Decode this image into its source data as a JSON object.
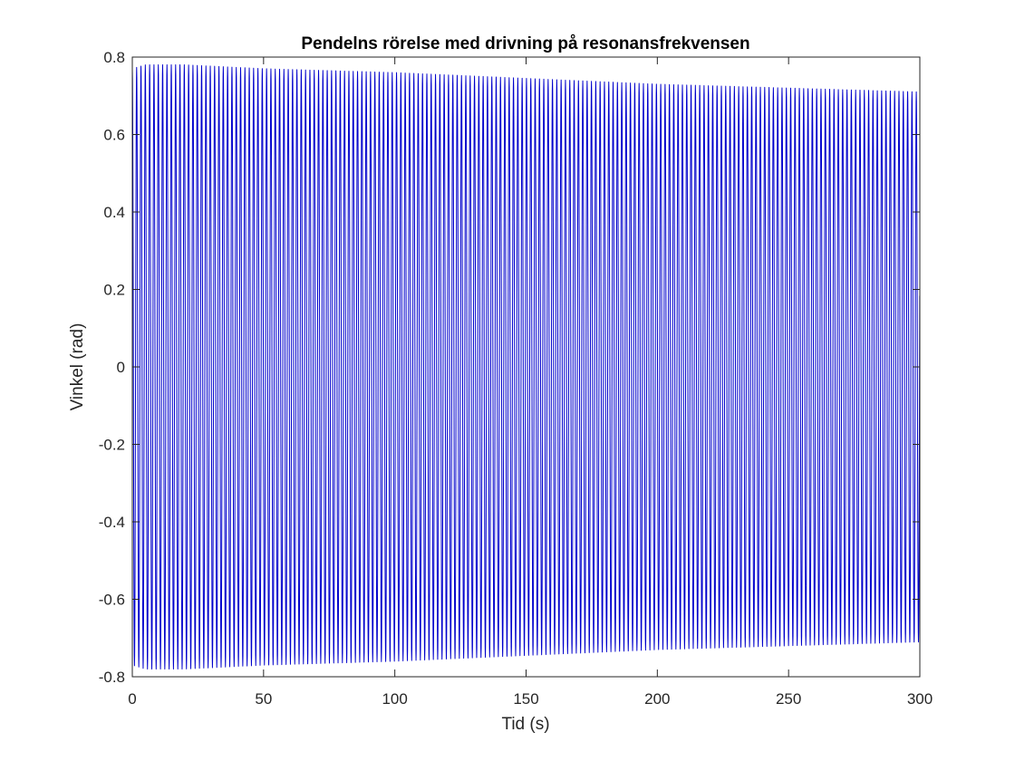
{
  "chart_data": {
    "type": "line",
    "title": "Pendelns rörelse med drivning på resonansfrekvensen",
    "xlabel": "Tid (s)",
    "ylabel": "Vinkel (rad)",
    "xlim": [
      0,
      300
    ],
    "ylim": [
      -0.8,
      0.8
    ],
    "xticks": [
      0,
      50,
      100,
      150,
      200,
      250,
      300
    ],
    "xtick_labels": [
      "0",
      "50",
      "100",
      "150",
      "200",
      "250",
      "300"
    ],
    "yticks": [
      -0.8,
      -0.6,
      -0.4,
      -0.2,
      0,
      0.2,
      0.4,
      0.6,
      0.8
    ],
    "ytick_labels": [
      "-0.8",
      "-0.6",
      "-0.4",
      "-0.2",
      "0",
      "0.2",
      "0.4",
      "0.6",
      "0.8"
    ],
    "grid": false,
    "box": true,
    "series": [
      {
        "color": "#0000cc",
        "x_range": [
          0,
          300
        ],
        "oscillation_period": 1.65,
        "envelope": {
          "t": [
            0,
            5,
            20,
            50,
            100,
            150,
            200,
            250,
            300
          ],
          "amplitude": [
            0.77,
            0.78,
            0.78,
            0.77,
            0.76,
            0.745,
            0.73,
            0.72,
            0.71
          ]
        }
      }
    ]
  }
}
